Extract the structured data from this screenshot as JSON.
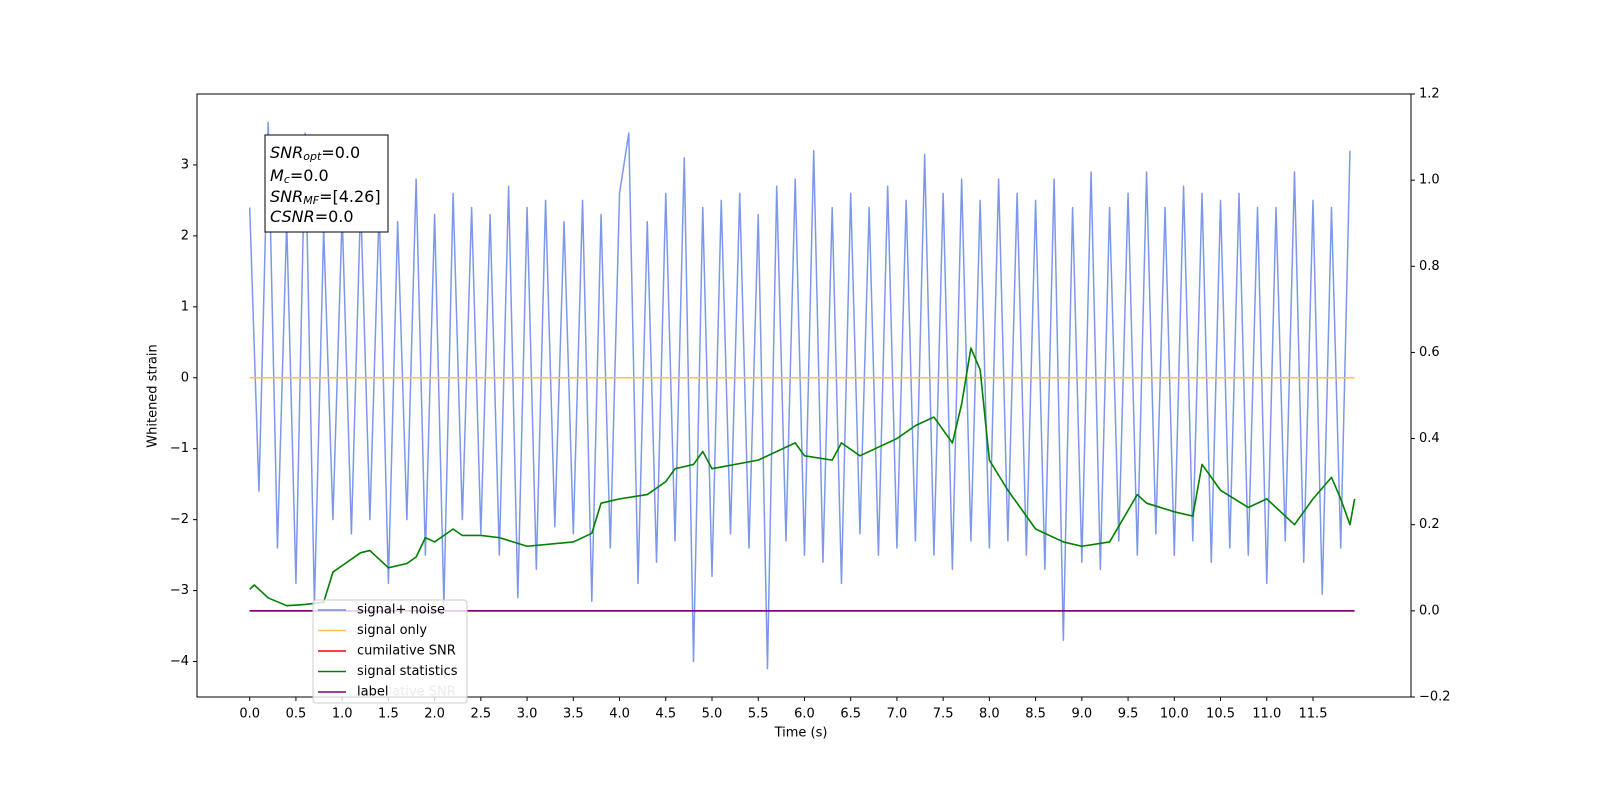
{
  "chart_data": {
    "type": "line",
    "xlabel": "Time (s)",
    "ylabel": "Whitened strain",
    "xlim": [
      -0.57,
      12.56
    ],
    "ylim": [
      -4.5,
      4.0
    ],
    "y2lim": [
      -0.2,
      1.2
    ],
    "xticks": [
      {
        "value": 0,
        "label": "0.0"
      },
      0.5,
      {
        "value": 1,
        "label": "1.0"
      },
      1.5,
      {
        "value": 2,
        "label": "2.0"
      },
      2.5,
      {
        "value": 3,
        "label": "3.0"
      },
      3.5,
      {
        "value": 4,
        "label": "4.0"
      },
      4.5,
      {
        "value": 5,
        "label": "5.0"
      },
      5.5,
      {
        "value": 6,
        "label": "6.0"
      },
      6.5,
      {
        "value": 7,
        "label": "7.0"
      },
      7.5,
      {
        "value": 8,
        "label": "8.0"
      },
      8.5,
      {
        "value": 9,
        "label": "9.0"
      },
      9.5,
      {
        "value": 10,
        "label": "10.0"
      },
      10.5,
      {
        "value": 11,
        "label": "11.0"
      },
      11.5
    ],
    "yticks": [
      {
        "value": -4,
        "label": "−4"
      },
      {
        "value": -3,
        "label": "−3"
      },
      {
        "value": -2,
        "label": "−2"
      },
      {
        "value": -1,
        "label": "−1"
      },
      0,
      1,
      2,
      3
    ],
    "y2ticks": [
      {
        "value": -0.2,
        "label": "−0.2"
      },
      {
        "value": 0,
        "label": "0.0"
      },
      0.2,
      0.4,
      0.6,
      0.8,
      {
        "value": 1,
        "label": "1.0"
      },
      1.2
    ],
    "legend": "lower left",
    "annotation": [
      {
        "symbol": "SNR",
        "sub": "opt",
        "value": "=0.0"
      },
      {
        "symbol": "M",
        "sub": "c",
        "value": "=0.0"
      },
      {
        "symbol": "SNR",
        "sub": "MF",
        "value": "=[4.26]"
      },
      {
        "symbol": "CSNR",
        "sub": null,
        "value": "=0.0"
      }
    ],
    "hidden_legend_text": "cumilative SNR",
    "series": [
      {
        "name": "signal+ noise",
        "color": "#6f8de8",
        "x": [
          0.0,
          0.1,
          0.2,
          0.3,
          0.4,
          0.5,
          0.6,
          0.7,
          0.8,
          0.9,
          1.0,
          1.1,
          1.2,
          1.3,
          1.4,
          1.5,
          1.6,
          1.7,
          1.8,
          1.9,
          2.0,
          2.1,
          2.2,
          2.3,
          2.4,
          2.5,
          2.6,
          2.7,
          2.8,
          2.9,
          3.0,
          3.1,
          3.2,
          3.3,
          3.4,
          3.5,
          3.6,
          3.7,
          3.8,
          3.9,
          4.0,
          4.1,
          4.2,
          4.3,
          4.4,
          4.5,
          4.6,
          4.7,
          4.8,
          4.9,
          5.0,
          5.1,
          5.2,
          5.3,
          5.4,
          5.5,
          5.6,
          5.7,
          5.8,
          5.9,
          6.0,
          6.1,
          6.2,
          6.3,
          6.4,
          6.5,
          6.6,
          6.7,
          6.8,
          6.9,
          7.0,
          7.1,
          7.2,
          7.3,
          7.4,
          7.5,
          7.6,
          7.7,
          7.8,
          7.9,
          8.0,
          8.1,
          8.2,
          8.3,
          8.4,
          8.5,
          8.6,
          8.7,
          8.8,
          8.9,
          9.0,
          9.1,
          9.2,
          9.3,
          9.4,
          9.5,
          9.6,
          9.7,
          9.8,
          9.9,
          10.0,
          10.1,
          10.2,
          10.3,
          10.4,
          10.5,
          10.6,
          10.7,
          10.8,
          10.9,
          11.0,
          11.1,
          11.2,
          11.3,
          11.4,
          11.5,
          11.6,
          11.7,
          11.8,
          11.9
        ],
        "values": [
          2.4,
          -1.6,
          3.6,
          -2.4,
          2.2,
          -2.9,
          3.45,
          -3.2,
          2.1,
          -2.0,
          2.3,
          -2.2,
          2.5,
          -2.0,
          2.4,
          -2.9,
          2.2,
          -2.0,
          2.8,
          -2.5,
          2.3,
          -3.2,
          2.6,
          -2.0,
          2.4,
          -2.2,
          2.3,
          -2.5,
          2.7,
          -3.1,
          2.4,
          -2.7,
          2.5,
          -2.1,
          2.2,
          -2.2,
          2.5,
          -3.15,
          2.3,
          -2.4,
          2.6,
          3.45,
          -2.9,
          2.2,
          -2.6,
          2.6,
          -2.3,
          3.1,
          -4.0,
          2.4,
          -2.8,
          2.5,
          -2.2,
          2.6,
          -2.4,
          2.3,
          -4.1,
          2.7,
          -2.3,
          2.8,
          -2.5,
          3.2,
          -2.6,
          2.4,
          -2.9,
          2.6,
          -2.2,
          2.4,
          -2.5,
          2.7,
          -2.4,
          2.5,
          -2.3,
          3.15,
          -2.5,
          2.6,
          -2.7,
          2.8,
          -2.3,
          2.5,
          -2.4,
          2.8,
          -2.3,
          2.6,
          -2.5,
          2.5,
          -2.7,
          2.8,
          -3.7,
          2.4,
          -2.6,
          2.9,
          -2.7,
          2.4,
          -2.3,
          2.6,
          -2.5,
          2.9,
          -2.2,
          2.4,
          -2.5,
          2.7,
          -2.3,
          2.6,
          -2.6,
          2.5,
          -2.4,
          2.6,
          -2.5,
          2.4,
          -2.9,
          2.4,
          -2.3,
          2.9,
          -2.6,
          2.5,
          -3.05,
          2.4,
          -2.4,
          3.2
        ]
      },
      {
        "name": "signal only",
        "color": "#ffc04d",
        "x": [
          0.0,
          11.95
        ],
        "values": [
          0,
          0
        ]
      },
      {
        "name": "cumilative SNR",
        "color": "#ff0000",
        "axis": "y2",
        "x": [
          0.0,
          11.95
        ],
        "values": [
          0,
          0
        ]
      },
      {
        "name": "signal statistics",
        "color": "#008000",
        "axis": "y2",
        "x": [
          0.0,
          0.05,
          0.2,
          0.4,
          0.6,
          0.8,
          0.9,
          1.0,
          1.2,
          1.3,
          1.5,
          1.7,
          1.8,
          1.9,
          2.0,
          2.1,
          2.2,
          2.3,
          2.5,
          2.7,
          3.0,
          3.5,
          3.7,
          3.8,
          4.0,
          4.3,
          4.5,
          4.6,
          4.8,
          4.9,
          5.0,
          5.5,
          5.9,
          6.0,
          6.3,
          6.4,
          6.6,
          7.0,
          7.2,
          7.4,
          7.6,
          7.7,
          7.8,
          7.9,
          8.0,
          8.2,
          8.5,
          8.8,
          9.0,
          9.3,
          9.6,
          9.7,
          10.0,
          10.2,
          10.3,
          10.5,
          10.8,
          11.0,
          11.2,
          11.3,
          11.5,
          11.7,
          11.8,
          11.9,
          11.95
        ],
        "values": [
          0.05,
          0.06,
          0.03,
          0.012,
          0.015,
          0.02,
          0.09,
          0.105,
          0.135,
          0.14,
          0.1,
          0.11,
          0.125,
          0.17,
          0.16,
          0.175,
          0.19,
          0.175,
          0.175,
          0.17,
          0.15,
          0.16,
          0.18,
          0.25,
          0.26,
          0.27,
          0.3,
          0.33,
          0.34,
          0.37,
          0.33,
          0.35,
          0.39,
          0.36,
          0.35,
          0.39,
          0.36,
          0.4,
          0.43,
          0.45,
          0.39,
          0.48,
          0.61,
          0.56,
          0.35,
          0.28,
          0.19,
          0.16,
          0.15,
          0.16,
          0.27,
          0.25,
          0.23,
          0.22,
          0.34,
          0.28,
          0.24,
          0.26,
          0.22,
          0.2,
          0.26,
          0.31,
          0.26,
          0.2,
          0.26
        ]
      },
      {
        "name": "label",
        "color": "#800080",
        "axis": "y2",
        "x": [
          0.0,
          11.95
        ],
        "values": [
          0,
          0
        ]
      }
    ]
  }
}
